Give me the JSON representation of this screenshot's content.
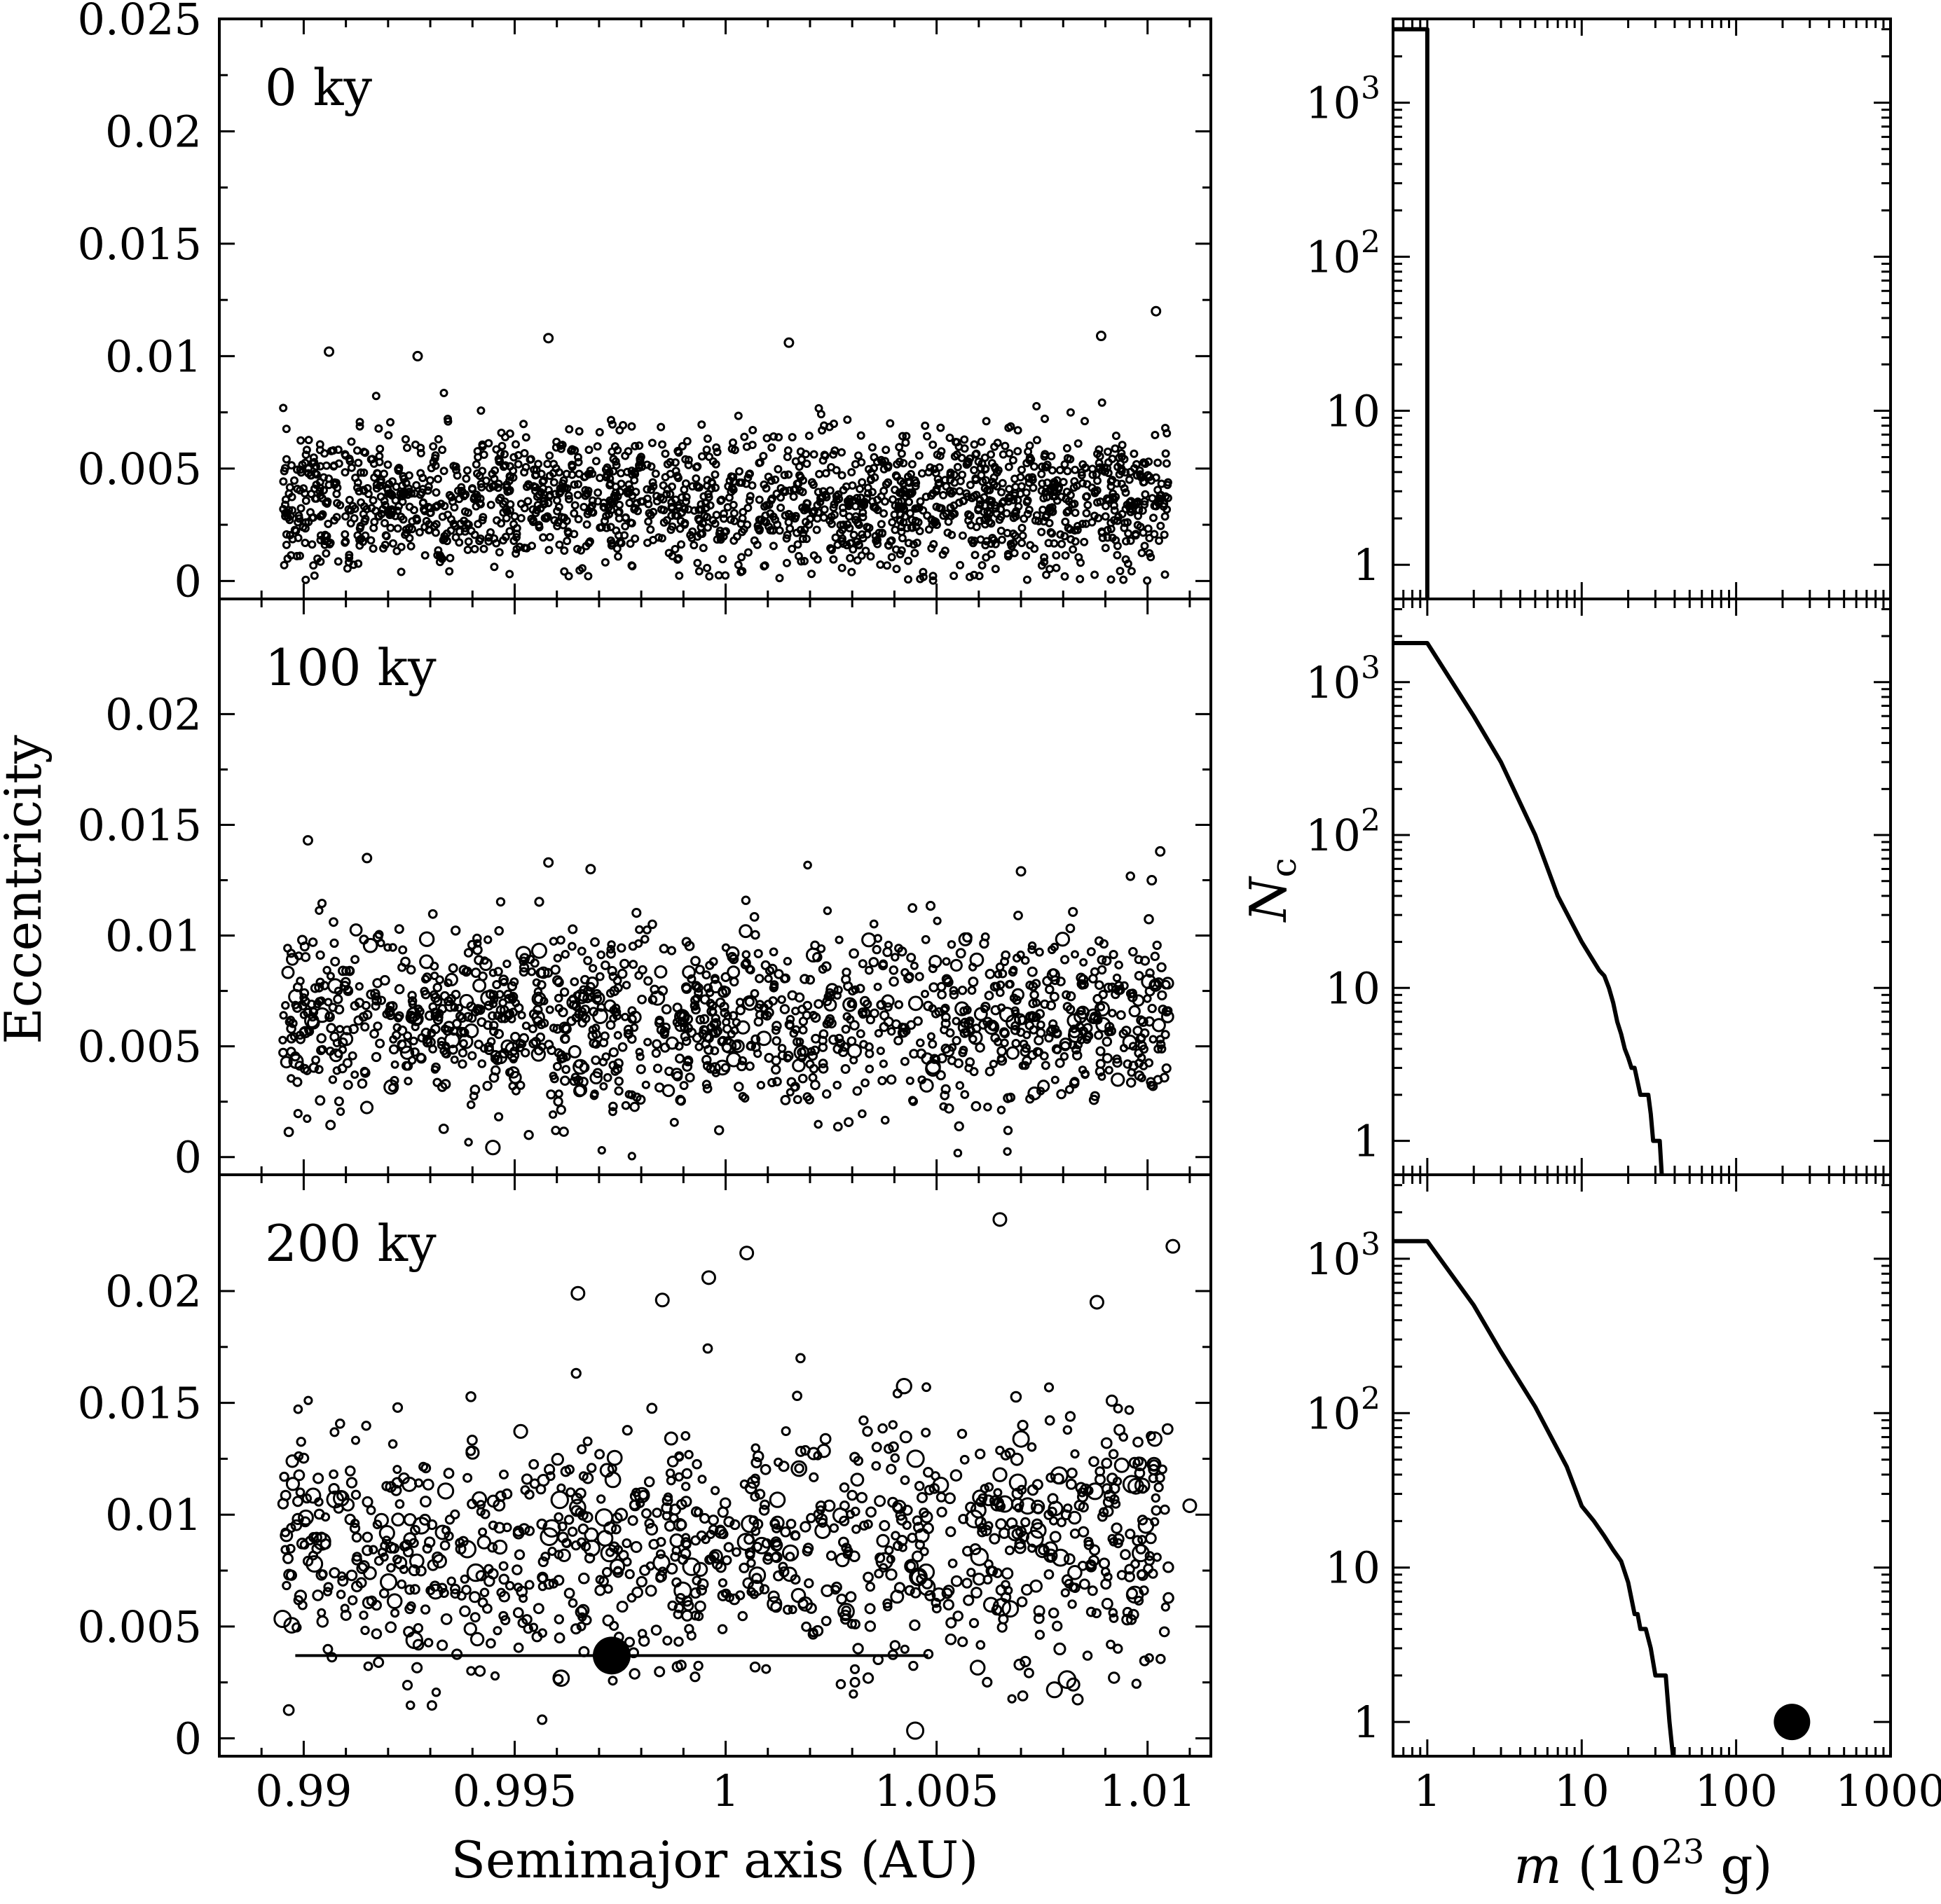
{
  "chart_data": [
    {
      "type": "scatter",
      "panel_label": "0 ky",
      "xlabel": "",
      "ylabel": "",
      "xlim": [
        0.988,
        1.0115
      ],
      "ylim": [
        -0.0008,
        0.025
      ],
      "xticks": [
        "0.99",
        "0.995",
        "1",
        "1.005",
        "1.01"
      ],
      "yticks": [
        "0",
        "0.005",
        "0.01",
        "0.015",
        "0.02",
        "0.025"
      ],
      "particles": {
        "count": 1800,
        "a_range": [
          0.9895,
          1.0105
        ],
        "e_mean": 0.0035,
        "e_spread": 0.0022
      },
      "outliers": [
        {
          "a": 1.0102,
          "e": 0.012
        },
        {
          "a": 0.9906,
          "e": 0.0102
        },
        {
          "a": 0.9958,
          "e": 0.0108
        },
        {
          "a": 1.0015,
          "e": 0.0106
        },
        {
          "a": 1.0089,
          "e": 0.0109
        },
        {
          "a": 0.9927,
          "e": 0.01
        }
      ]
    },
    {
      "type": "scatter",
      "panel_label": "100 ky",
      "xlabel": "",
      "ylabel": "Eccentricity",
      "xlim": [
        0.988,
        1.0115
      ],
      "ylim": [
        -0.0008,
        0.0252
      ],
      "xticks": [
        "0.99",
        "0.995",
        "1",
        "1.005",
        "1.01"
      ],
      "yticks": [
        "0",
        "0.005",
        "0.01",
        "0.015",
        "0.02"
      ],
      "particles": {
        "count": 1300,
        "a_range": [
          0.9895,
          1.0105
        ],
        "e_mean": 0.0062,
        "e_spread": 0.0028
      },
      "outliers": [
        {
          "a": 0.9901,
          "e": 0.0143
        },
        {
          "a": 0.9915,
          "e": 0.0135
        },
        {
          "a": 1.0103,
          "e": 0.0138
        },
        {
          "a": 0.9958,
          "e": 0.0133
        },
        {
          "a": 1.007,
          "e": 0.0129
        },
        {
          "a": 0.9968,
          "e": 0.013
        },
        {
          "a": 1.0101,
          "e": 0.0125
        }
      ]
    },
    {
      "type": "scatter",
      "panel_label": "200 ky",
      "xlabel": "Semimajor axis (AU)",
      "ylabel": "",
      "xlim": [
        0.988,
        1.0115
      ],
      "ylim": [
        -0.0008,
        0.0252
      ],
      "xticks": [
        "0.99",
        "0.995",
        "1",
        "1.005",
        "1.01"
      ],
      "yticks": [
        "0",
        "0.005",
        "0.01",
        "0.015",
        "0.02"
      ],
      "particles": {
        "count": 1000,
        "a_range": [
          0.9895,
          1.0105
        ],
        "e_mean": 0.0085,
        "e_spread": 0.004
      },
      "outliers": [
        {
          "a": 1.0065,
          "e": 0.0232
        },
        {
          "a": 1.0106,
          "e": 0.022
        },
        {
          "a": 1.0005,
          "e": 0.0217
        },
        {
          "a": 0.9996,
          "e": 0.0206
        },
        {
          "a": 0.9965,
          "e": 0.0199
        },
        {
          "a": 0.9985,
          "e": 0.0196
        },
        {
          "a": 1.0088,
          "e": 0.0195
        },
        {
          "a": 1.011,
          "e": 0.0104
        }
      ],
      "protoplanet": {
        "a": 0.9973,
        "e": 0.0037,
        "a_min": 0.9898,
        "a_max": 1.0048
      }
    },
    {
      "type": "line",
      "xscale": "log",
      "yscale": "log",
      "xlim": [
        0.6,
        1000
      ],
      "ylim": [
        0.6,
        3500
      ],
      "xlabel": "",
      "ylabel": "",
      "xticks": [
        "1",
        "10",
        "100",
        "1000"
      ],
      "yticks": [
        "1",
        "10",
        "10^2",
        "10^3"
      ],
      "series": [
        {
          "x": [
            0.6,
            1,
            1
          ],
          "y": [
            3000,
            3000,
            0.6
          ]
        }
      ]
    },
    {
      "type": "line",
      "xscale": "log",
      "yscale": "log",
      "xlim": [
        0.6,
        1000
      ],
      "ylim": [
        0.6,
        3500
      ],
      "xlabel": "",
      "ylabel": "N_c",
      "xticks": [
        "1",
        "10",
        "100",
        "1000"
      ],
      "yticks": [
        "1",
        "10",
        "10^2",
        "10^3"
      ],
      "series": [
        {
          "x": [
            0.6,
            1,
            2,
            3,
            5,
            7,
            10,
            13,
            14,
            15,
            16,
            17,
            18,
            19,
            20,
            21,
            22,
            24,
            26,
            27,
            28,
            29,
            30,
            31,
            32,
            33
          ],
          "y": [
            1800,
            1800,
            600,
            300,
            100,
            40,
            20,
            13,
            12,
            10,
            8,
            6,
            5,
            4,
            3.5,
            3,
            3,
            2,
            2,
            2,
            1.5,
            1,
            1,
            1,
            1,
            0.6
          ]
        }
      ]
    },
    {
      "type": "line",
      "xscale": "log",
      "yscale": "log",
      "xlim": [
        0.6,
        1000
      ],
      "ylim": [
        0.6,
        3500
      ],
      "xlabel": "m (10^23 g)",
      "ylabel": "",
      "xticks": [
        "1",
        "10",
        "100",
        "1000"
      ],
      "yticks": [
        "1",
        "10",
        "10^2",
        "10^3"
      ],
      "series": [
        {
          "x": [
            0.6,
            1,
            2,
            3,
            5,
            8,
            10,
            12,
            14,
            16,
            18,
            20,
            22,
            23,
            24,
            26,
            28,
            30,
            32,
            35,
            37,
            39
          ],
          "y": [
            1300,
            1300,
            500,
            250,
            110,
            45,
            25,
            20,
            16,
            13,
            11,
            8,
            5,
            5,
            4,
            4,
            3,
            2,
            2,
            2,
            1,
            0.6
          ]
        }
      ],
      "protoplanet": {
        "x": 230,
        "y": 1
      }
    }
  ]
}
